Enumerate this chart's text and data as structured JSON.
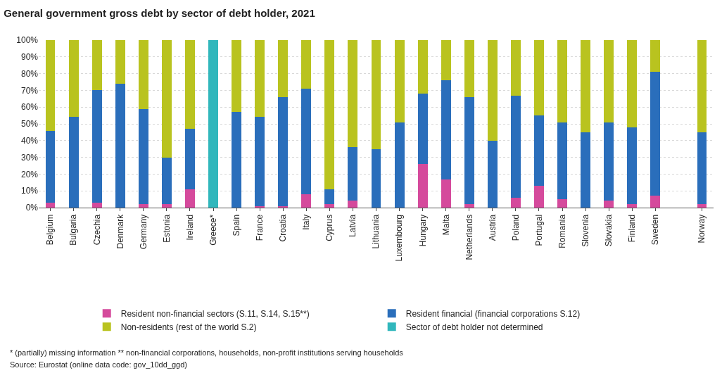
{
  "chart_data": {
    "type": "bar",
    "stacked": true,
    "title": "General government gross debt by sector of debt holder, 2021",
    "categories": [
      "Belgium",
      "Bulgaria",
      "Czechia",
      "Denmark",
      "Germany",
      "Estonia",
      "Ireland",
      "Greece*",
      "Spain",
      "France",
      "Croatia",
      "Italy",
      "Cyprus",
      "Latvia",
      "Lithuania",
      "Luxembourg",
      "Hungary",
      "Malta",
      "Netherlands",
      "Austria",
      "Poland",
      "Portugal",
      "Romania",
      "Slovenia",
      "Slovakia",
      "Finland",
      "Sweden",
      null,
      "Norway"
    ],
    "series": [
      {
        "name": "Resident non-financial sectors (S.11, S.14, S.15**)",
        "color": "#d54a9c",
        "values": [
          3,
          0,
          3,
          0,
          2,
          2,
          11,
          null,
          0,
          1,
          1,
          8,
          2,
          4,
          0,
          0,
          26,
          17,
          2,
          0,
          6,
          13,
          5,
          0,
          4,
          2,
          7,
          null,
          2
        ]
      },
      {
        "name": "Resident financial (financial corporations S.12)",
        "color": "#2a6ebb",
        "values": [
          43,
          54,
          67,
          74,
          57,
          28,
          36,
          null,
          57,
          53,
          65,
          63,
          9,
          32,
          35,
          51,
          42,
          59,
          64,
          40,
          61,
          42,
          46,
          45,
          47,
          46,
          74,
          null,
          43
        ]
      },
      {
        "name": "Non-residents (rest of the world S.2)",
        "color": "#b9c31f",
        "values": [
          54,
          46,
          30,
          26,
          41,
          70,
          53,
          null,
          43,
          46,
          34,
          29,
          89,
          64,
          65,
          49,
          32,
          24,
          34,
          60,
          33,
          45,
          49,
          55,
          49,
          52,
          19,
          null,
          55
        ]
      },
      {
        "name": "Sector of debt holder not determined",
        "color": "#31b7bc",
        "values": [
          null,
          null,
          null,
          null,
          null,
          null,
          null,
          100,
          null,
          null,
          null,
          null,
          null,
          null,
          null,
          null,
          null,
          null,
          null,
          null,
          null,
          null,
          null,
          null,
          null,
          null,
          null,
          null,
          null
        ]
      }
    ],
    "ylim": [
      0,
      100
    ],
    "yticks": [
      {
        "value": 0,
        "label": "0%"
      },
      {
        "value": 10,
        "label": "10%"
      },
      {
        "value": 20,
        "label": "20%"
      },
      {
        "value": 30,
        "label": "30%"
      },
      {
        "value": 40,
        "label": "40%"
      },
      {
        "value": 50,
        "label": "50%"
      },
      {
        "value": 60,
        "label": "60%"
      },
      {
        "value": 70,
        "label": "70%"
      },
      {
        "value": 80,
        "label": "80%"
      },
      {
        "value": 90,
        "label": "90%"
      },
      {
        "value": 100,
        "label": "100%"
      }
    ],
    "grid": "y",
    "legend": "bottom",
    "annotations": [
      "* (partially) missing information ** non-financial corporations, households, non-profit institutions serving households",
      "Source: Eurostat (online data code: gov_10dd_ggd)"
    ]
  }
}
